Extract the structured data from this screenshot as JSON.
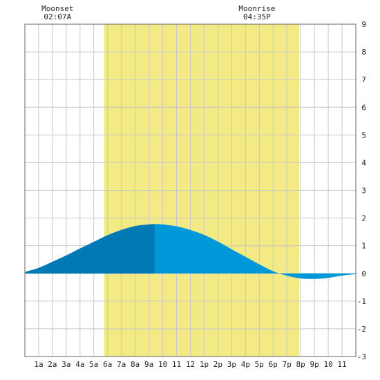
{
  "chart_data": {
    "type": "area",
    "title": "",
    "xlabel": "",
    "ylabel": "",
    "x_unit": "hour of day",
    "xlim": [
      0,
      24
    ],
    "ylim": [
      -3,
      9
    ],
    "y_ticks": [
      -3,
      -2,
      -1,
      0,
      1,
      2,
      3,
      4,
      5,
      6,
      7,
      8,
      9
    ],
    "x_tick_labels": [
      "1a",
      "2a",
      "3a",
      "4a",
      "5a",
      "6a",
      "7a",
      "8a",
      "9a",
      "10",
      "11",
      "12",
      "1p",
      "2p",
      "3p",
      "4p",
      "5p",
      "6p",
      "7p",
      "8p",
      "9p",
      "10",
      "11"
    ],
    "x_tick_positions": [
      1,
      2,
      3,
      4,
      5,
      6,
      7,
      8,
      9,
      10,
      11,
      12,
      13,
      14,
      15,
      16,
      17,
      18,
      19,
      20,
      21,
      22,
      23
    ],
    "grid": true,
    "daylight": {
      "start": 5.75,
      "end": 19.9
    },
    "annotations": [
      {
        "title": "Moonset",
        "time": "02:07A",
        "x": 2.12
      },
      {
        "title": "Moonrise",
        "time": "04:35P",
        "x": 16.58
      }
    ],
    "series": [
      {
        "x": [
          0,
          1,
          2,
          3,
          4,
          5,
          6,
          7,
          8,
          9,
          9.4,
          10,
          11,
          12,
          13,
          14,
          15,
          16,
          17,
          18,
          19,
          20,
          21,
          22,
          23,
          24
        ],
        "values": [
          0.05,
          0.2,
          0.42,
          0.65,
          0.9,
          1.14,
          1.38,
          1.57,
          1.71,
          1.77,
          1.78,
          1.77,
          1.7,
          1.57,
          1.39,
          1.15,
          0.87,
          0.6,
          0.33,
          0.08,
          -0.08,
          -0.18,
          -0.2,
          -0.16,
          -0.08,
          -0.02
        ]
      }
    ],
    "highlight_segment": {
      "from": 0,
      "to": 9.4
    }
  },
  "colors": {
    "background": "#ffffff",
    "grid": "#c8c8c8",
    "daylight": "#f3e985",
    "area_dark": "#0179b4",
    "area_light": "#0098d8",
    "frame": "#666666",
    "text": "#222222"
  }
}
